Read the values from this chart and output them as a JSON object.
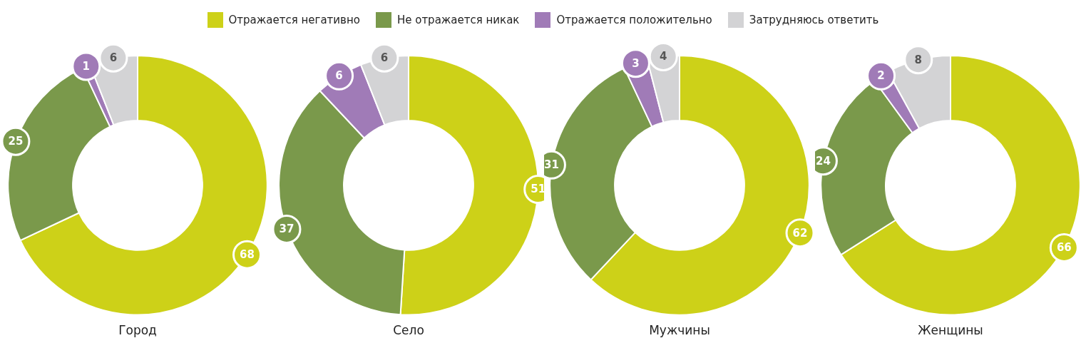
{
  "chart_data": [
    {
      "type": "donut",
      "title": "Город",
      "legend": "top",
      "data_labels": true,
      "categories": [
        "Отражается негативно",
        "Не отражается никак",
        "Отражается положительно",
        "Затрудняюсь ответить"
      ],
      "values": [
        68,
        25,
        1,
        6
      ],
      "colors": [
        "#cdd118",
        "#7a994b",
        "#a07bb7",
        "#d3d3d5"
      ]
    },
    {
      "type": "donut",
      "title": "Село",
      "data_labels": true,
      "categories": [
        null,
        null,
        null,
        null
      ],
      "values": [
        51,
        37,
        6,
        6
      ],
      "colors": [
        "#cdd118",
        "#7a994b",
        "#a07bb7",
        "#d3d3d5"
      ]
    },
    {
      "type": "donut",
      "title": "Мужчины",
      "data_labels": true,
      "categories": [
        null,
        null,
        null,
        null
      ],
      "values": [
        62,
        31,
        3,
        4
      ],
      "colors": [
        "#cdd118",
        "#7a994b",
        "#a07bb7",
        "#d3d3d5"
      ]
    },
    {
      "type": "donut",
      "title": "Женщины",
      "data_labels": true,
      "categories": [
        null,
        null,
        null,
        null
      ],
      "values": [
        66,
        24,
        2,
        8
      ],
      "colors": [
        "#cdd118",
        "#7a994b",
        "#a07bb7",
        "#d3d3d5"
      ]
    }
  ]
}
